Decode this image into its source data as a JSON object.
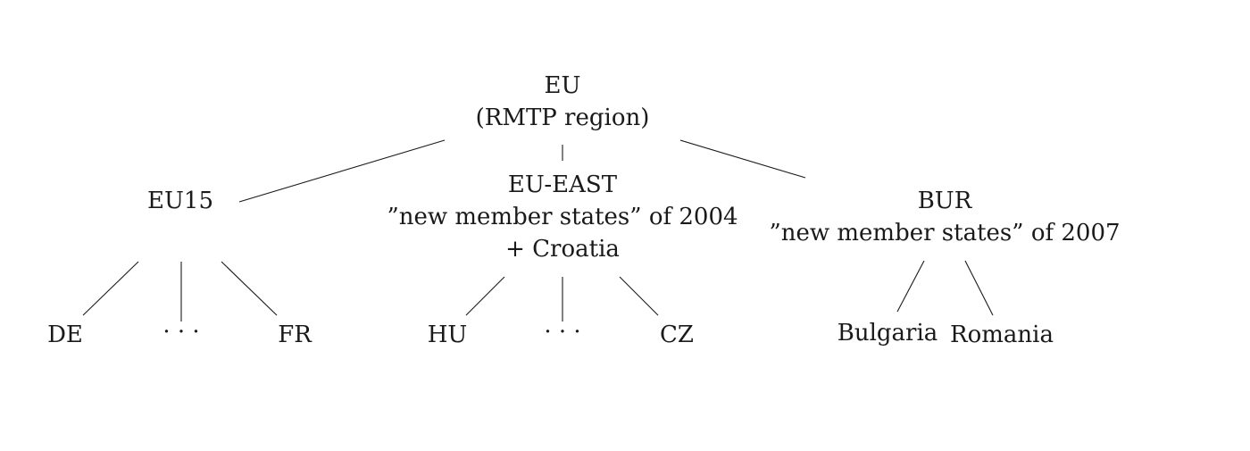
{
  "tree": {
    "root": {
      "title": "EU",
      "subtitle": "(RMTP region)"
    },
    "children": [
      {
        "title": "EU15",
        "leaves": [
          "DE",
          "· · ·",
          "FR"
        ]
      },
      {
        "title": "EU-EAST",
        "line2": "”new member states” of 2004",
        "line3": "+ Croatia",
        "leaves": [
          "HU",
          "· · ·",
          "CZ"
        ]
      },
      {
        "title": "BUR",
        "line2": "”new member states” of 2007",
        "leaves": [
          "Bulgaria",
          "Romania"
        ]
      }
    ]
  }
}
